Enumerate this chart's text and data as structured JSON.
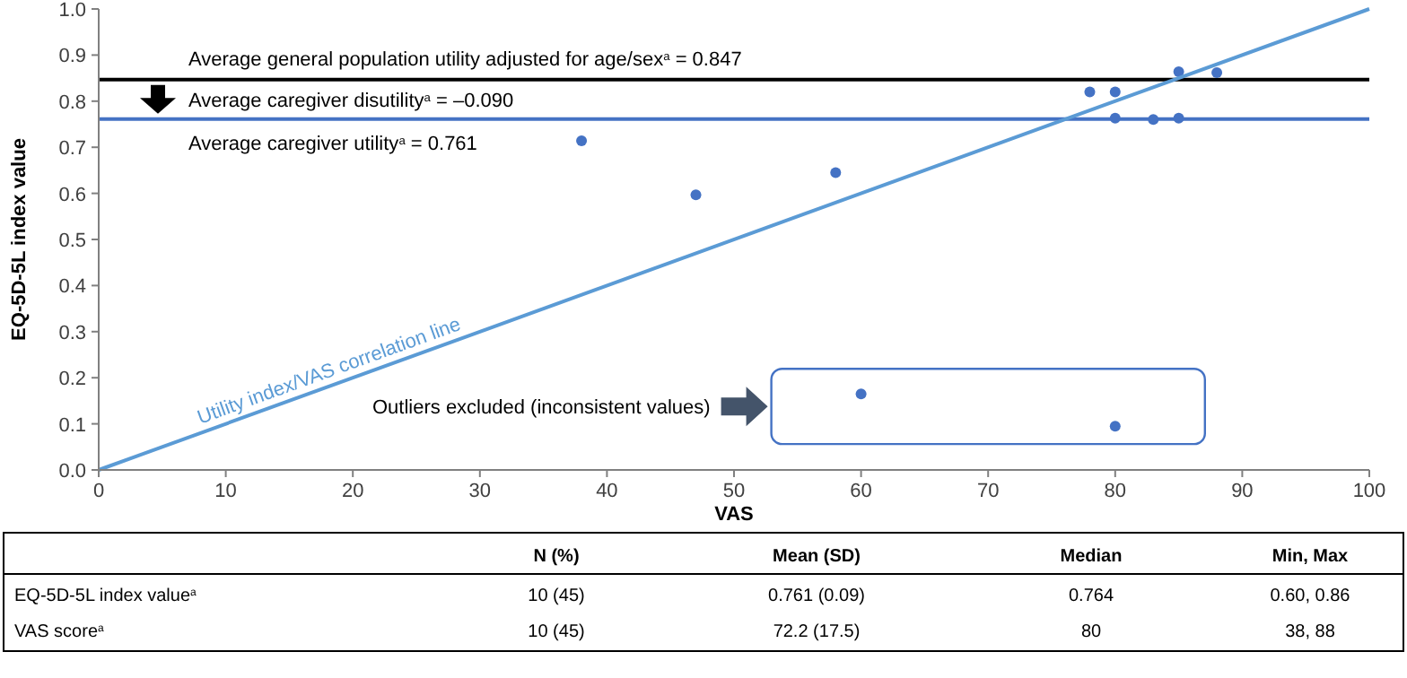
{
  "chart_data": [
    {
      "type": "scatter",
      "xlabel": "VAS",
      "ylabel": "EQ-5D-5L index value",
      "xlim": [
        0,
        100
      ],
      "ylim": [
        0,
        1
      ],
      "xticks": [
        0,
        10,
        20,
        30,
        40,
        50,
        60,
        70,
        80,
        90,
        100
      ],
      "yticks": [
        {
          "value": 0,
          "label": "0.0"
        },
        {
          "value": 0.1,
          "label": "0.1"
        },
        {
          "value": 0.2,
          "label": "0.2"
        },
        {
          "value": 0.3,
          "label": "0.3"
        },
        {
          "value": 0.4,
          "label": "0.4"
        },
        {
          "value": 0.5,
          "label": "0.5"
        },
        {
          "value": 0.6,
          "label": "0.6"
        },
        {
          "value": 0.7,
          "label": "0.7"
        },
        {
          "value": 0.8,
          "label": "0.8"
        },
        {
          "value": 0.9,
          "label": "0.9"
        },
        {
          "value": 1,
          "label": "1.0"
        }
      ],
      "marker": "circle",
      "series": [
        {
          "type": "scatter",
          "color": "#4472c4",
          "x": [
            38,
            47,
            58,
            78,
            80,
            80,
            83,
            85,
            85,
            88
          ],
          "values": [
            0.714,
            0.597,
            0.645,
            0.82,
            0.82,
            0.763,
            0.76,
            0.763,
            0.864,
            0.862
          ]
        },
        {
          "type": "scatter",
          "color": "#4472c4",
          "x": [
            60,
            80
          ],
          "values": [
            0.165,
            0.095
          ]
        },
        {
          "type": "line",
          "marker": "none",
          "name": "Utility index/VAS correlation line",
          "color": "#5b9bd5",
          "x": [
            0,
            100
          ],
          "values": [
            0,
            1
          ]
        }
      ],
      "ref_lines": [
        {
          "axis": "y",
          "value": 0.847,
          "label": "Average general population  utility adjusted  for age/sex$^{a}$ = 0.847",
          "color": "#000000"
        },
        {
          "axis": "y",
          "value": 0.761,
          "label": "Average caregiver utility$^{a}$  = 0.761",
          "color": "#4472c4"
        }
      ],
      "annotations": [
        "Average caregiver disutility$^{a}$  = –0.090",
        "Outliers excluded (inconsistent values)"
      ]
    },
    {
      "type": "other",
      "categories": [
        "N (%)",
        "Mean (SD)",
        "Median",
        "Min, Max"
      ],
      "y_categories": [
        "EQ-5D-5L index value$^{a}$",
        "VAS score$^{a}$"
      ],
      "cell_labels": [
        [
          "10 (45)",
          "0.761 (0.09)",
          "0.764",
          "0.60, 0.86"
        ],
        [
          "10 (45)",
          "72.2 (17.5)",
          "80",
          "38, 88"
        ]
      ]
    }
  ]
}
